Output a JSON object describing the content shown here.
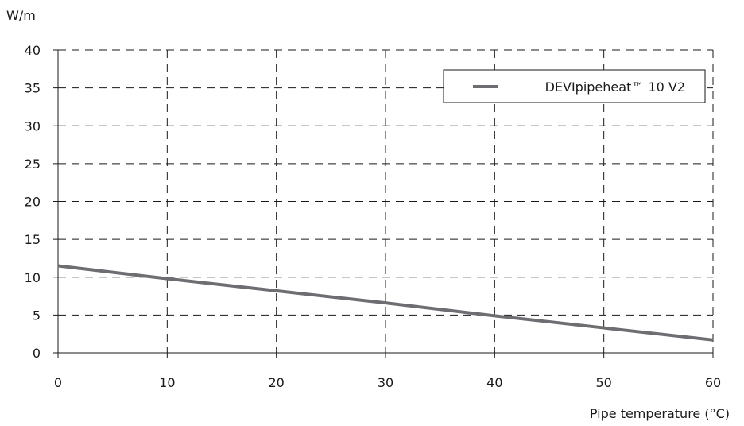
{
  "chart_data": {
    "type": "line",
    "title": "",
    "xlabel": "Pipe temperature (°C)",
    "ylabel": "W/m",
    "xlim": [
      0,
      60
    ],
    "ylim": [
      0,
      40
    ],
    "x_ticks": [
      "0",
      "10",
      "20",
      "30",
      "40",
      "50",
      "60"
    ],
    "y_ticks": [
      "0",
      "5",
      "10",
      "15",
      "20",
      "25",
      "30",
      "35",
      "40"
    ],
    "grid": true,
    "legend_position": "top-right",
    "series": [
      {
        "name": "DEVIpipeheat™ 10 V2",
        "color": "#6d6e71",
        "x": [
          0,
          10,
          20,
          30,
          40,
          50,
          60
        ],
        "y": [
          11.5,
          9.8,
          8.2,
          6.6,
          4.9,
          3.3,
          1.7
        ]
      }
    ]
  }
}
